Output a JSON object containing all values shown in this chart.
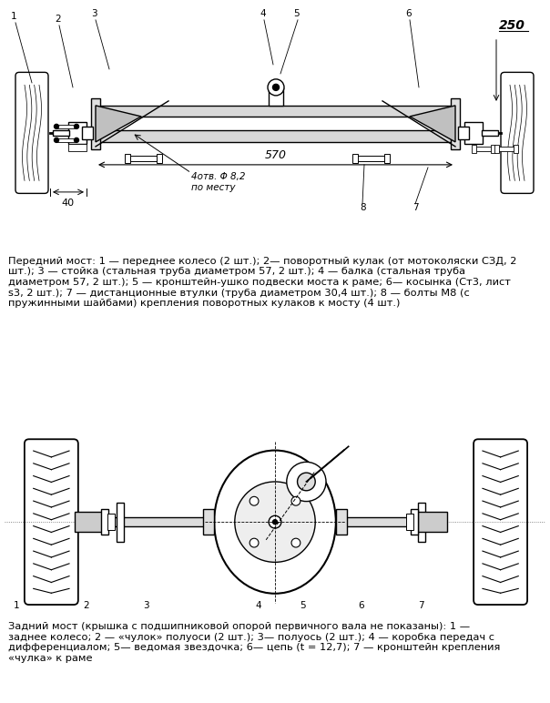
{
  "bg_color": "#ffffff",
  "text_color": "#000000",
  "caption1": "Передний мост: 1 — переднее колесо (2 шт.); 2— поворотный кулак (от мотоколяски СЗД, 2\nшт.); 3 — стойка (стальная труба диаметром 57, 2 шт.); 4 — балка (стальная труба\nдиаметром 57, 2 шт.); 5 — кронштейн-ушко подвески моста к раме; 6— косынка (Ст3, лист\ns3, 2 шт.); 7 — дистанционные втулки (труба диаметром 30,4 шт.); 8 — болты М8 (с\nпружинными шайбами) крепления поворотных кулаков к мосту (4 шт.)",
  "caption2": "Задний мост (крышка с подшипниковой опорой первичного вала не показаны): 1 —\nзаднее колесо; 2 — «чулок» полуоси (2 шт.); 3— полуось (2 шт.); 4 — коробка передач с\nдифференциалом; 5— ведомая звездочка; 6— цепь (t = 12,7); 7 — кронштейн крепления\n«чулка» к раме",
  "dim_570": "570",
  "dim_250": "250",
  "dim_40": "40",
  "dim_holes": "4отв. Φ 8,2",
  "dim_place": "по месту"
}
